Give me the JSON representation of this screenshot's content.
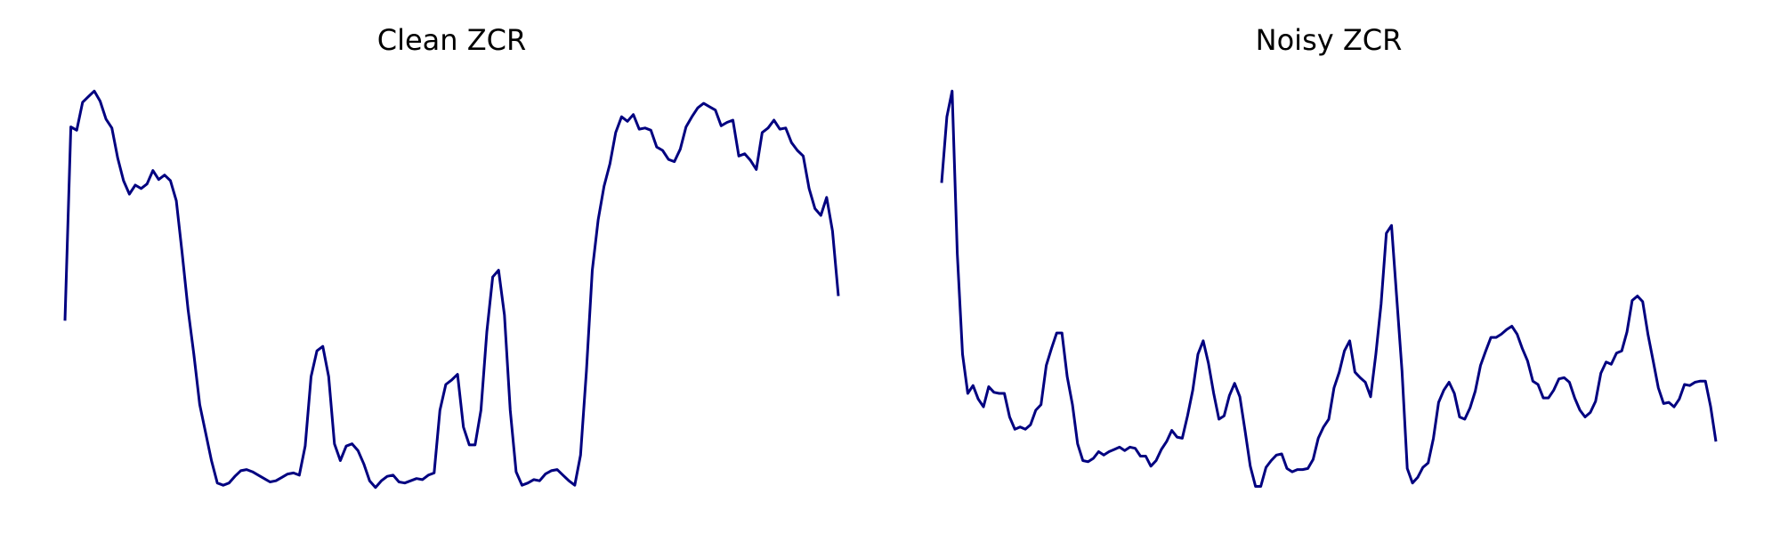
{
  "chart_data": [
    {
      "type": "line",
      "title": "Clean ZCR",
      "color": "#000080",
      "ylim": [
        0,
        360
      ],
      "values": [
        150,
        323,
        320,
        345,
        350,
        355,
        346,
        330,
        322,
        295,
        275,
        263,
        271,
        268,
        272,
        284,
        276,
        280,
        275,
        257,
        210,
        160,
        120,
        75,
        50,
        25,
        5,
        3,
        5,
        11,
        16,
        17,
        15,
        12,
        9,
        6,
        7,
        10,
        13,
        14,
        12,
        38,
        100,
        123,
        127,
        100,
        40,
        25,
        38,
        40,
        34,
        22,
        7,
        1,
        7,
        11,
        12,
        6,
        5,
        7,
        9,
        8,
        12,
        14,
        70,
        93,
        97,
        102,
        55,
        39,
        39,
        70,
        140,
        189,
        195,
        155,
        70,
        15,
        3,
        5,
        8,
        7,
        13,
        16,
        17,
        12,
        7,
        3,
        30,
        105,
        195,
        240,
        270,
        290,
        318,
        332,
        328,
        334,
        321,
        322,
        320,
        305,
        302,
        294,
        292,
        303,
        323,
        332,
        340,
        344,
        341,
        338,
        324,
        327,
        329,
        297,
        299,
        293,
        285,
        318,
        322,
        329,
        321,
        322,
        309,
        302,
        297,
        268,
        250,
        244,
        260,
        230,
        172
      ]
    },
    {
      "type": "line",
      "title": "Noisy ZCR",
      "color": "#000080",
      "ylim": [
        0,
        360
      ],
      "values": [
        273,
        332,
        355,
        210,
        120,
        85,
        92,
        80,
        73,
        91,
        86,
        85,
        85,
        64,
        53,
        55,
        53,
        57,
        70,
        75,
        110,
        125,
        139,
        139,
        100,
        75,
        40,
        25,
        24,
        27,
        33,
        30,
        33,
        35,
        37,
        34,
        37,
        36,
        29,
        29,
        20,
        25,
        35,
        42,
        52,
        46,
        45,
        65,
        88,
        120,
        132,
        112,
        85,
        62,
        65,
        83,
        94,
        82,
        52,
        20,
        2,
        2,
        19,
        25,
        30,
        31,
        18,
        15,
        17,
        17,
        18,
        26,
        45,
        55,
        62,
        90,
        104,
        123,
        132,
        104,
        99,
        95,
        82,
        120,
        165,
        228,
        235,
        170,
        105,
        18,
        5,
        10,
        19,
        23,
        45,
        77,
        88,
        95,
        85,
        64,
        62,
        72,
        87,
        110,
        123,
        135,
        135,
        138,
        142,
        145,
        138,
        125,
        114,
        96,
        93,
        81,
        81,
        88,
        98,
        99,
        95,
        81,
        70,
        64,
        68,
        78,
        103,
        113,
        111,
        121,
        123,
        140,
        168,
        172,
        167,
        138,
        114,
        90,
        76,
        77,
        73,
        80,
        93,
        92,
        95,
        96,
        96,
        73,
        42
      ]
    }
  ]
}
